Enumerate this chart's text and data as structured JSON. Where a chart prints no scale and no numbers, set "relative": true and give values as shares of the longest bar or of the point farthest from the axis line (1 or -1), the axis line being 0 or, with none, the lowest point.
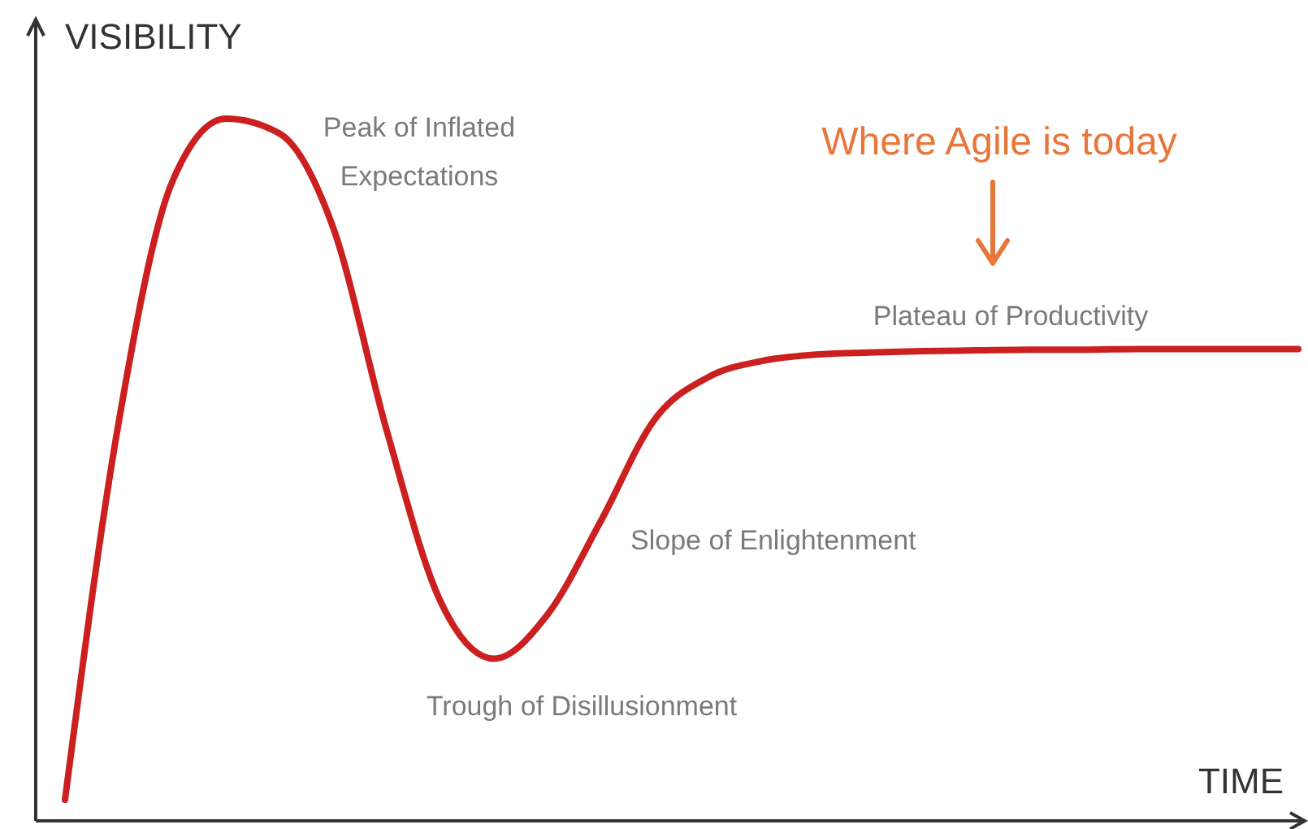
{
  "chart_data": {
    "type": "line",
    "relative": true,
    "xlabel": "TIME",
    "ylabel": "VISIBILITY",
    "categories": [
      null,
      null,
      null,
      null,
      null,
      null,
      null,
      null,
      null,
      null,
      null,
      null,
      null,
      null,
      null,
      null,
      null,
      null,
      null,
      null,
      null,
      null,
      null,
      null
    ],
    "series": [
      {
        "color": "#cc1f1f",
        "values": [
          0.03,
          0.567,
          0.91,
          1.0,
          0.979,
          0.845,
          0.556,
          0.313,
          0.231,
          0.294,
          0.428,
          0.572,
          0.632,
          0.655,
          0.664,
          0.667,
          0.669,
          0.67,
          0.671,
          0.671,
          0.672,
          0.672,
          0.672,
          0.672
        ]
      }
    ],
    "annotations": [
      "Peak of Inflated Expectations",
      "Trough of Disillusionment",
      "Slope of Enlightenment",
      "Plateau of Productivity",
      "Where Agile is today"
    ],
    "marker": "none",
    "line_style": "solid"
  }
}
